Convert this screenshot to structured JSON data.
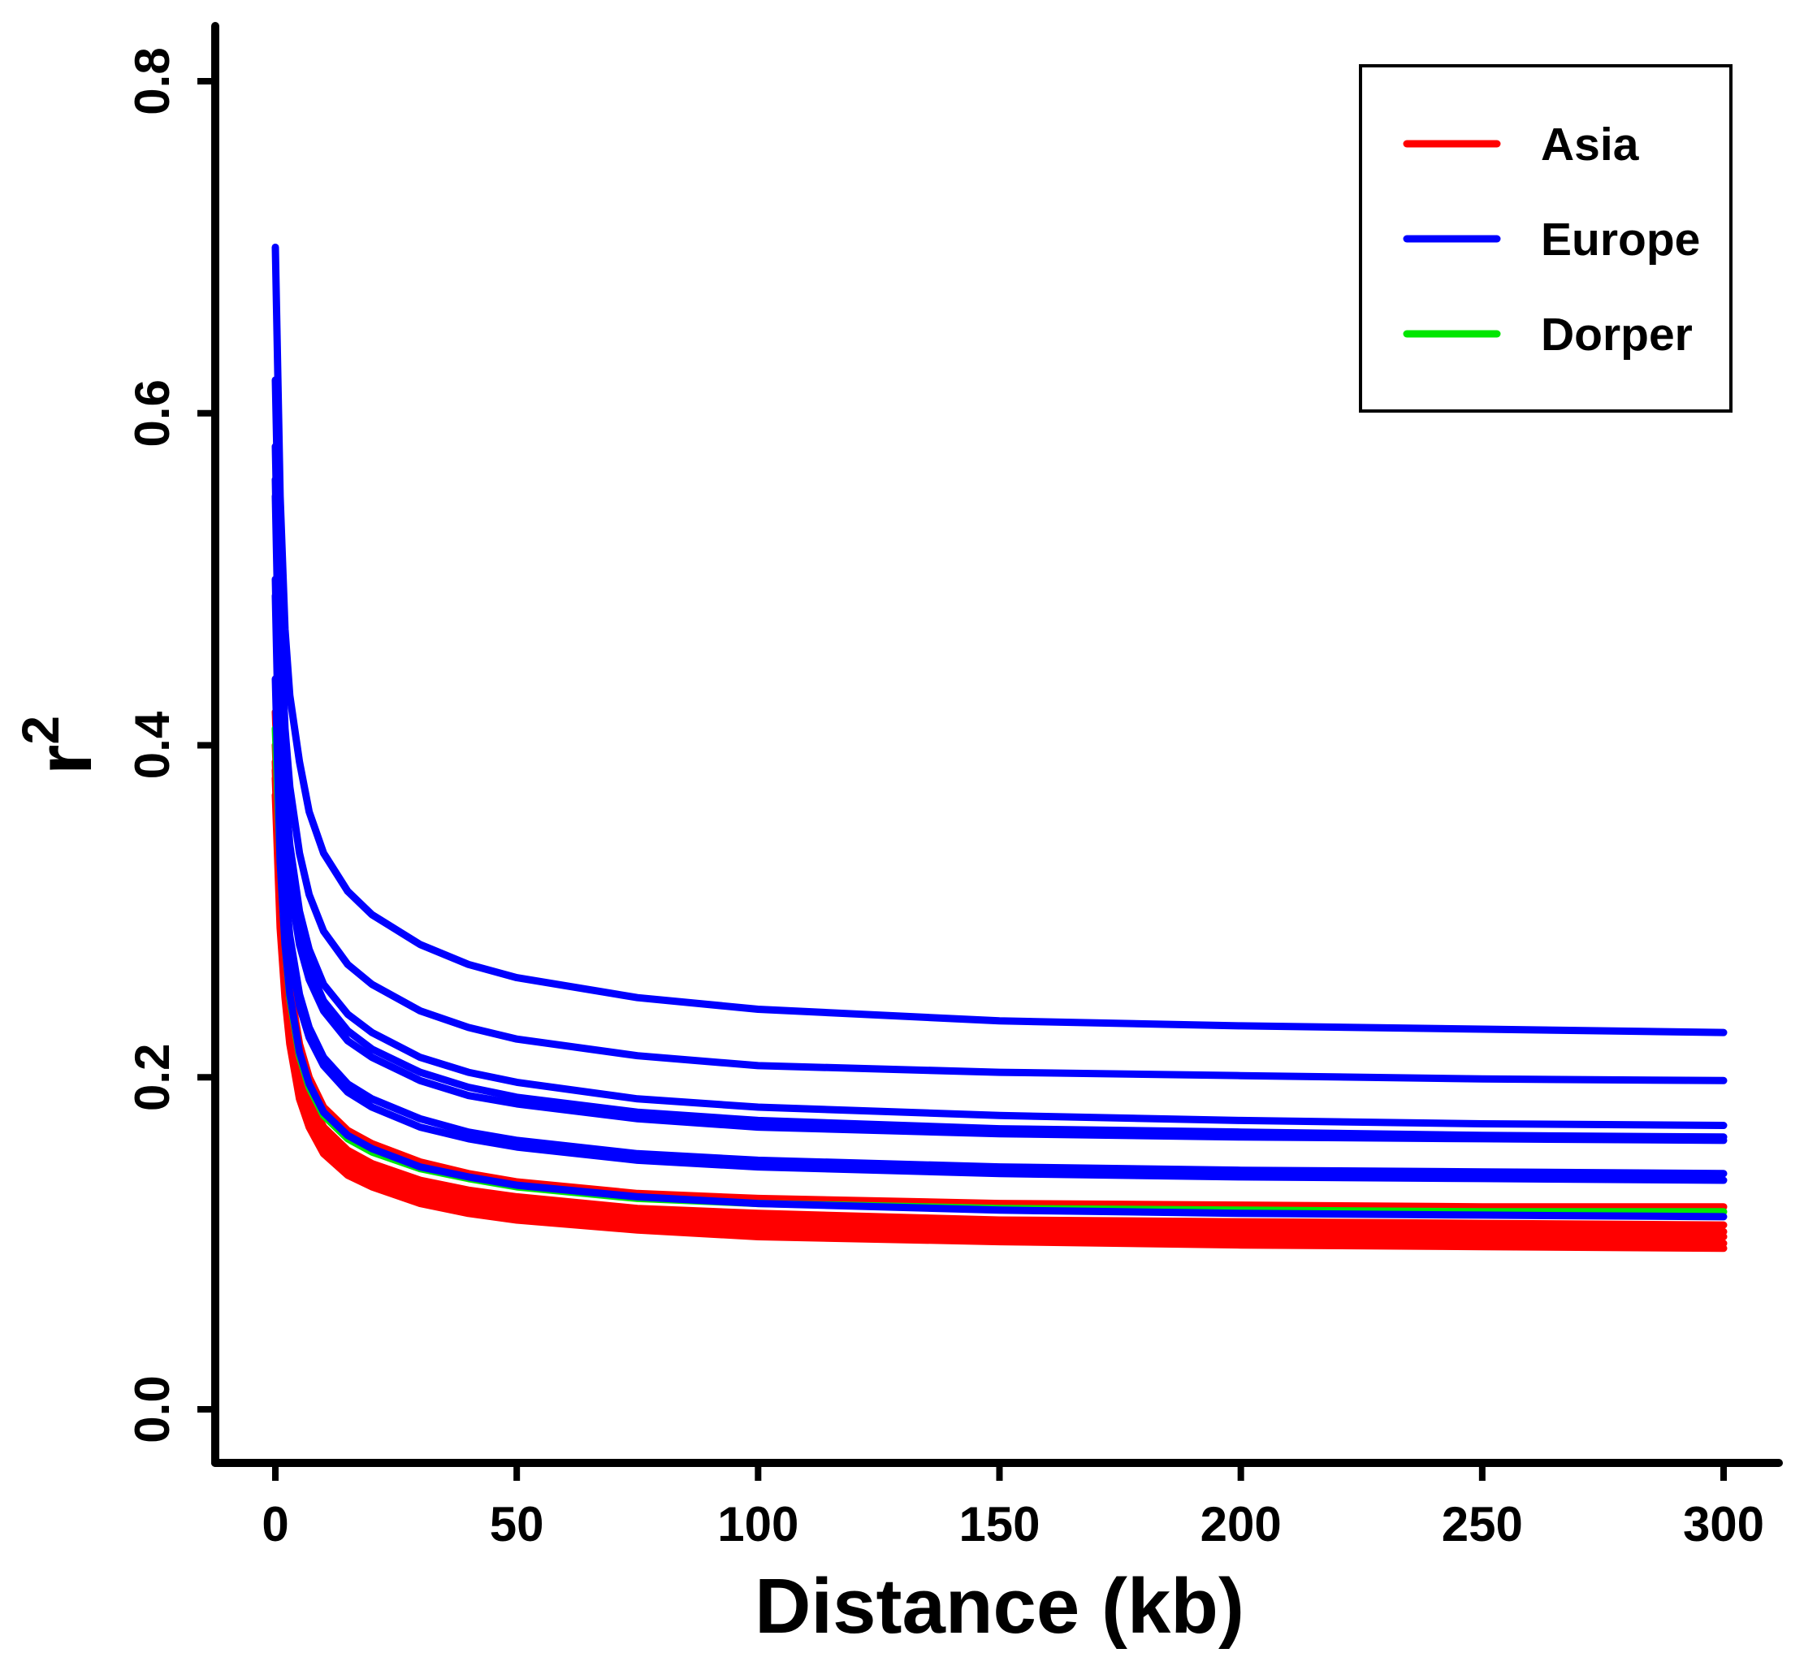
{
  "chart_data": {
    "type": "line",
    "title": "",
    "xlabel": "Distance (kb)",
    "ylabel": "r",
    "ylabel_superscript": "2",
    "xlim": [
      0,
      300
    ],
    "ylim": [
      0,
      0.8
    ],
    "x_ticks": [
      "0",
      "50",
      "100",
      "150",
      "200",
      "250",
      "300"
    ],
    "y_ticks": [
      "0.0",
      "0.2",
      "0.4",
      "0.6",
      "0.8"
    ],
    "grid": false,
    "legend": {
      "placement": "top-right",
      "entries": [
        {
          "label": "Asia",
          "color": "#ff0000"
        },
        {
          "label": "Europe",
          "color": "#0000ff"
        },
        {
          "label": "Dorper",
          "color": "#00e600"
        }
      ]
    },
    "x": [
      0,
      1,
      2,
      3,
      5,
      7,
      10,
      15,
      20,
      30,
      40,
      50,
      75,
      100,
      150,
      200,
      250,
      300
    ],
    "series": [
      {
        "group": "Asia",
        "color": "#ff0000",
        "values": [
          0.42,
          0.34,
          0.29,
          0.255,
          0.22,
          0.2,
          0.182,
          0.168,
          0.16,
          0.149,
          0.142,
          0.137,
          0.13,
          0.127,
          0.124,
          0.123,
          0.122,
          0.122
        ]
      },
      {
        "group": "Asia",
        "color": "#ff0000",
        "values": [
          0.4,
          0.32,
          0.27,
          0.24,
          0.205,
          0.187,
          0.17,
          0.156,
          0.148,
          0.138,
          0.132,
          0.128,
          0.121,
          0.118,
          0.114,
          0.113,
          0.112,
          0.111
        ]
      },
      {
        "group": "Asia",
        "color": "#ff0000",
        "values": [
          0.39,
          0.31,
          0.265,
          0.234,
          0.2,
          0.183,
          0.166,
          0.152,
          0.144,
          0.134,
          0.128,
          0.124,
          0.117,
          0.114,
          0.111,
          0.109,
          0.108,
          0.107
        ]
      },
      {
        "group": "Asia",
        "color": "#ff0000",
        "values": [
          0.385,
          0.305,
          0.26,
          0.23,
          0.196,
          0.178,
          0.162,
          0.148,
          0.14,
          0.13,
          0.124,
          0.12,
          0.114,
          0.11,
          0.107,
          0.106,
          0.105,
          0.104
        ]
      },
      {
        "group": "Asia",
        "color": "#ff0000",
        "values": [
          0.38,
          0.3,
          0.255,
          0.226,
          0.192,
          0.175,
          0.158,
          0.145,
          0.137,
          0.127,
          0.121,
          0.117,
          0.111,
          0.107,
          0.104,
          0.102,
          0.101,
          0.1
        ]
      },
      {
        "group": "Asia",
        "color": "#ff0000",
        "values": [
          0.37,
          0.29,
          0.248,
          0.22,
          0.187,
          0.17,
          0.154,
          0.141,
          0.134,
          0.124,
          0.118,
          0.114,
          0.108,
          0.104,
          0.101,
          0.099,
          0.098,
          0.097
        ]
      },
      {
        "group": "Dorper",
        "color": "#00e600",
        "values": [
          0.41,
          0.33,
          0.28,
          0.248,
          0.213,
          0.194,
          0.177,
          0.163,
          0.155,
          0.145,
          0.139,
          0.134,
          0.127,
          0.124,
          0.121,
          0.12,
          0.119,
          0.119
        ]
      },
      {
        "group": "Europe",
        "color": "#0000ff",
        "values": [
          0.7,
          0.55,
          0.47,
          0.43,
          0.39,
          0.36,
          0.335,
          0.312,
          0.298,
          0.28,
          0.268,
          0.26,
          0.248,
          0.241,
          0.234,
          0.231,
          0.229,
          0.227
        ]
      },
      {
        "group": "Europe",
        "color": "#0000ff",
        "values": [
          0.62,
          0.48,
          0.41,
          0.375,
          0.335,
          0.31,
          0.288,
          0.268,
          0.256,
          0.24,
          0.23,
          0.223,
          0.213,
          0.207,
          0.203,
          0.201,
          0.199,
          0.198
        ]
      },
      {
        "group": "Europe",
        "color": "#0000ff",
        "values": [
          0.58,
          0.44,
          0.375,
          0.34,
          0.3,
          0.277,
          0.256,
          0.238,
          0.227,
          0.212,
          0.203,
          0.197,
          0.187,
          0.182,
          0.177,
          0.174,
          0.172,
          0.171
        ]
      },
      {
        "group": "Europe",
        "color": "#0000ff",
        "values": [
          0.56,
          0.42,
          0.36,
          0.325,
          0.288,
          0.266,
          0.246,
          0.228,
          0.217,
          0.203,
          0.194,
          0.188,
          0.179,
          0.174,
          0.169,
          0.167,
          0.165,
          0.164
        ]
      },
      {
        "group": "Europe",
        "color": "#0000ff",
        "values": [
          0.55,
          0.41,
          0.35,
          0.316,
          0.28,
          0.259,
          0.24,
          0.222,
          0.212,
          0.198,
          0.189,
          0.184,
          0.175,
          0.17,
          0.166,
          0.164,
          0.163,
          0.162
        ]
      },
      {
        "group": "Europe",
        "color": "#0000ff",
        "values": [
          0.5,
          0.37,
          0.315,
          0.285,
          0.25,
          0.23,
          0.212,
          0.196,
          0.187,
          0.175,
          0.167,
          0.162,
          0.154,
          0.15,
          0.146,
          0.144,
          0.143,
          0.142
        ]
      },
      {
        "group": "Europe",
        "color": "#0000ff",
        "values": [
          0.49,
          0.36,
          0.307,
          0.278,
          0.243,
          0.224,
          0.207,
          0.191,
          0.182,
          0.17,
          0.163,
          0.158,
          0.15,
          0.146,
          0.142,
          0.14,
          0.139,
          0.138
        ]
      },
      {
        "group": "Europe",
        "color": "#0000ff",
        "values": [
          0.44,
          0.33,
          0.28,
          0.25,
          0.215,
          0.196,
          0.179,
          0.165,
          0.157,
          0.146,
          0.14,
          0.135,
          0.128,
          0.124,
          0.12,
          0.118,
          0.117,
          0.116
        ]
      }
    ]
  }
}
